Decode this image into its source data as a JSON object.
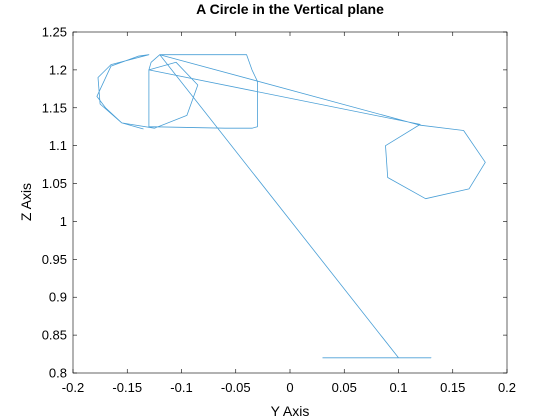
{
  "chart_data": {
    "type": "line",
    "title": "A Circle in the Vertical plane",
    "xlabel": "Y Axis",
    "ylabel": "Z Axis",
    "xlim": [
      -0.2,
      0.2
    ],
    "ylim": [
      0.8,
      1.25
    ],
    "xticks": [
      -0.2,
      -0.15,
      -0.1,
      -0.05,
      0,
      0.05,
      0.1,
      0.15,
      0.2
    ],
    "xtick_labels": [
      "-0.2",
      "-0.15",
      "-0.1",
      "-0.05",
      "0",
      "0.05",
      "0.1",
      "0.15",
      "0.2"
    ],
    "yticks": [
      0.8,
      0.85,
      0.9,
      0.95,
      1,
      1.05,
      1.1,
      1.15,
      1.2,
      1.25
    ],
    "ytick_labels": [
      "0.8",
      "0.85",
      "0.9",
      "0.95",
      "1",
      "1.05",
      "1.1",
      "1.15",
      "1.2",
      "1.25"
    ],
    "grid": false,
    "series_color": "#4a9fd6",
    "series": [
      {
        "x": [
          0.03,
          0.13,
          0.1,
          -0.12,
          -0.04,
          -0.035,
          -0.03,
          -0.03,
          -0.035,
          -0.06,
          -0.13,
          -0.13,
          -0.128,
          -0.12,
          0.12,
          0.16,
          0.18,
          0.165,
          0.125,
          0.09,
          0.088,
          0.12,
          -0.13,
          -0.105,
          -0.085,
          -0.095,
          -0.125,
          -0.155,
          -0.175,
          -0.177,
          -0.165,
          -0.13,
          -0.14,
          -0.165,
          -0.178,
          -0.17,
          -0.155,
          -0.135
        ],
        "y": [
          0.82,
          0.82,
          0.82,
          1.22,
          1.22,
          1.2,
          1.185,
          1.125,
          1.123,
          1.123,
          1.125,
          1.2,
          1.21,
          1.22,
          1.127,
          1.12,
          1.078,
          1.043,
          1.03,
          1.058,
          1.1,
          1.128,
          1.2,
          1.21,
          1.18,
          1.14,
          1.123,
          1.13,
          1.155,
          1.19,
          1.207,
          1.22,
          1.218,
          1.205,
          1.165,
          1.15,
          1.13,
          1.122
        ]
      }
    ]
  }
}
